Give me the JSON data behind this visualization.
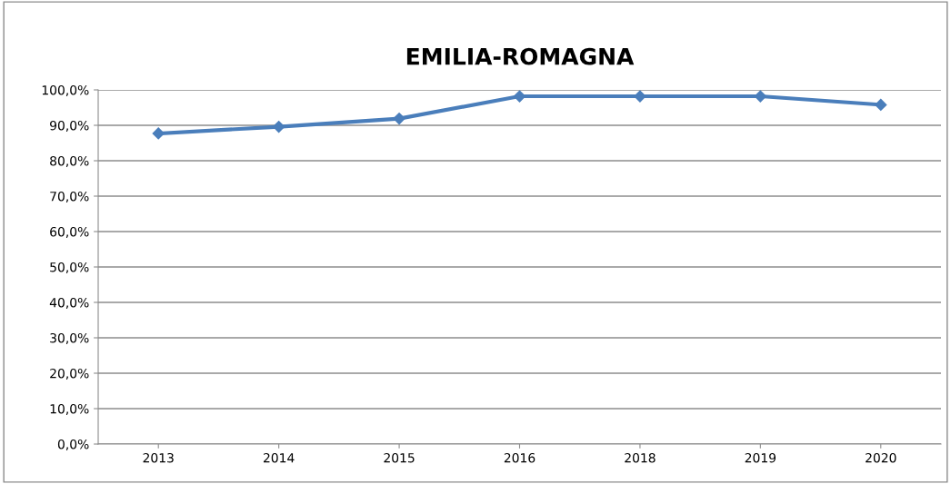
{
  "chart_data": {
    "type": "line",
    "title": "EMILIA-ROMAGNA",
    "categories": [
      "2013",
      "2014",
      "2015",
      "2016",
      "2018",
      "2019",
      "2020"
    ],
    "series": [
      {
        "color": "#4a7ebb",
        "values": [
          87.7,
          89.6,
          91.9,
          98.2,
          98.2,
          98.2,
          95.8
        ]
      }
    ],
    "ylim": [
      0,
      100
    ],
    "yticks": [
      {
        "value": 0,
        "label": "0,0%"
      },
      {
        "value": 10,
        "label": "10,0%"
      },
      {
        "value": 20,
        "label": "20,0%"
      },
      {
        "value": 30,
        "label": "30,0%"
      },
      {
        "value": 40,
        "label": "40,0%"
      },
      {
        "value": 50,
        "label": "50,0%"
      },
      {
        "value": 60,
        "label": "60,0%"
      },
      {
        "value": 70,
        "label": "70,0%"
      },
      {
        "value": 80,
        "label": "80,0%"
      },
      {
        "value": 90,
        "label": "90,0%"
      },
      {
        "value": 100,
        "label": "100,0%"
      }
    ],
    "grid": "y",
    "marker": "diamond",
    "line_style": "solid"
  }
}
